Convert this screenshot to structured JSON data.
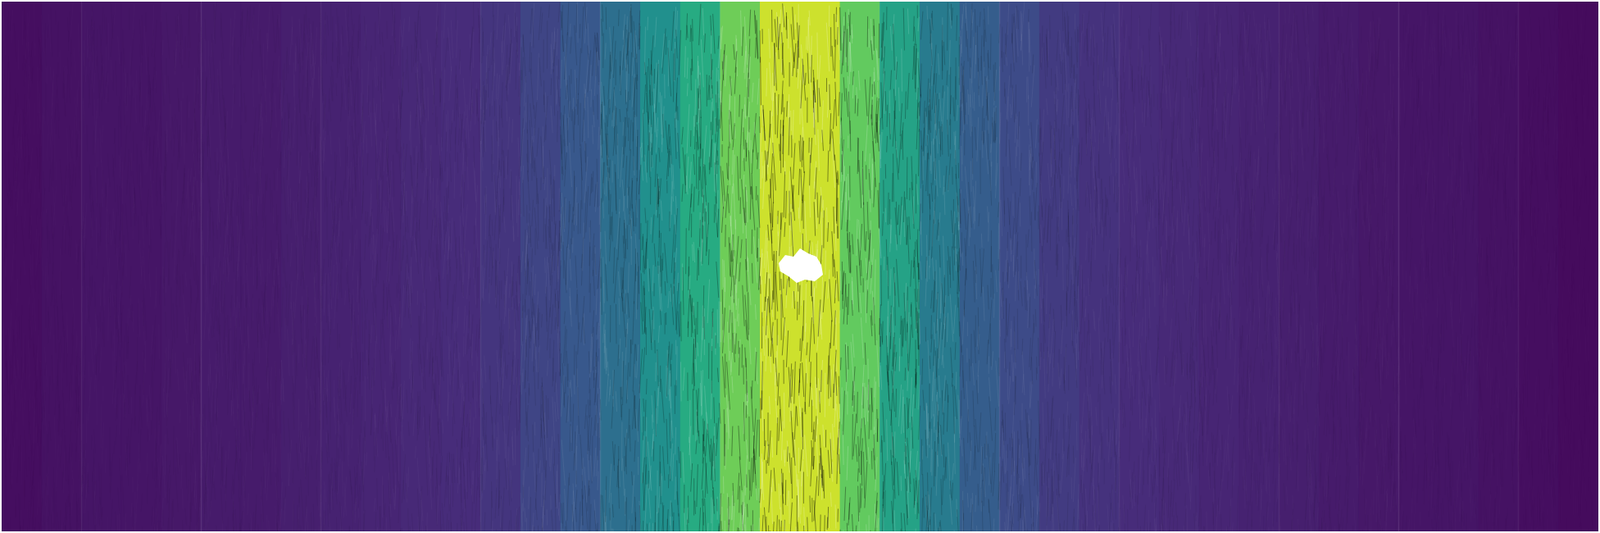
{
  "chart_data": {
    "type": "heatmap",
    "x": [
      0.0125,
      0.0375,
      0.0625,
      0.0875,
      0.1125,
      0.1375,
      0.1625,
      0.1875,
      0.2125,
      0.2375,
      0.2625,
      0.2875,
      0.3125,
      0.3375,
      0.3625,
      0.3875,
      0.4125,
      0.4375,
      0.4625,
      0.4875,
      0.5125,
      0.5375,
      0.5625,
      0.5875,
      0.6125,
      0.6375,
      0.6625,
      0.6875,
      0.7125,
      0.7375,
      0.7625,
      0.7875,
      0.8125,
      0.8375,
      0.8625,
      0.8875,
      0.9125,
      0.9375,
      0.9625,
      0.9875
    ],
    "values": [
      0.04,
      0.05,
      0.06,
      0.06,
      0.07,
      0.08,
      0.08,
      0.09,
      0.1,
      0.11,
      0.12,
      0.13,
      0.16,
      0.21,
      0.28,
      0.37,
      0.5,
      0.62,
      0.78,
      0.93,
      0.93,
      0.76,
      0.58,
      0.42,
      0.3,
      0.23,
      0.18,
      0.15,
      0.13,
      0.12,
      0.11,
      0.1,
      0.09,
      0.08,
      0.07,
      0.06,
      0.06,
      0.05,
      0.04,
      0.03
    ],
    "xlim": [
      0,
      1
    ],
    "ylim": [
      0,
      1
    ],
    "color_range": [
      0,
      1
    ],
    "color": "viridis",
    "tick_labels": false,
    "grid": false
  }
}
